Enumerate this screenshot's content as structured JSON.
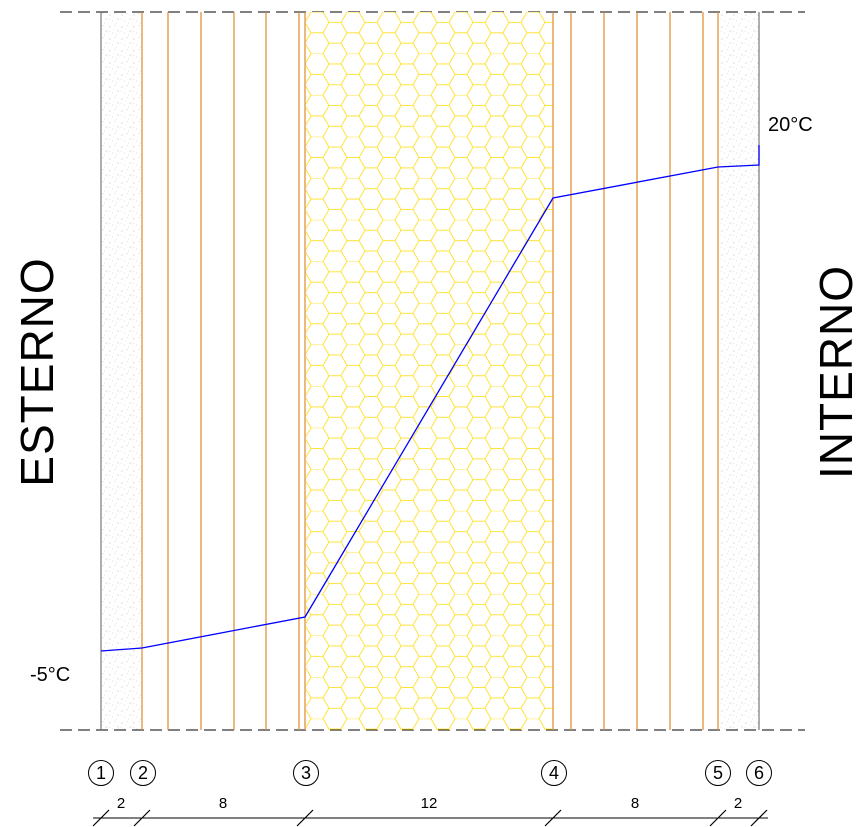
{
  "labels": {
    "exterior": "ESTERNO",
    "interior": "INTERNO",
    "temp_exterior": "-5°C",
    "temp_interior": "20°C"
  },
  "nodes": [
    "1",
    "2",
    "3",
    "4",
    "5",
    "6"
  ],
  "layers": [
    {
      "thickness": "2",
      "material": "plaster"
    },
    {
      "thickness": "8",
      "material": "hollow-brick"
    },
    {
      "thickness": "12",
      "material": "insulation"
    },
    {
      "thickness": "8",
      "material": "hollow-brick"
    },
    {
      "thickness": "2",
      "material": "plaster"
    }
  ],
  "colors": {
    "temperature_line": "#0000ff",
    "brick_lines": "#e08a2c",
    "insulation_hex": "#ffe23a",
    "outline": "#777777"
  }
}
